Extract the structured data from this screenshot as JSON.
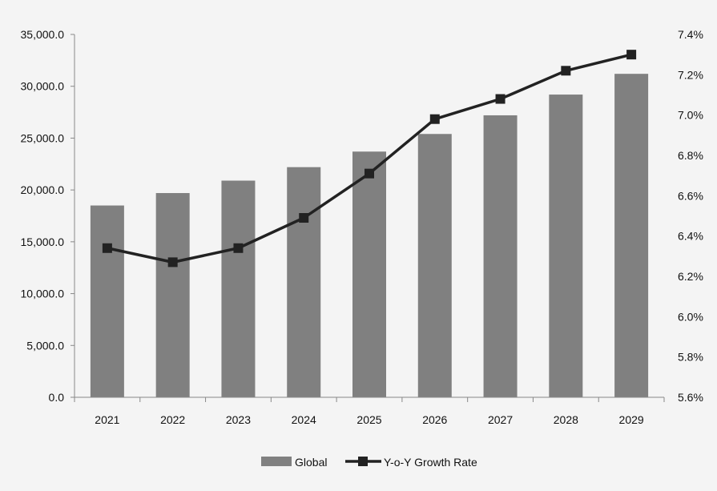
{
  "chart_data": {
    "type": "bar",
    "categories": [
      "2021",
      "2022",
      "2023",
      "2024",
      "2025",
      "2026",
      "2027",
      "2028",
      "2029"
    ],
    "series": [
      {
        "name": "Global",
        "type": "bar",
        "axis": "left",
        "color": "#808080",
        "values": [
          18500,
          19700,
          20900,
          22200,
          23700,
          25400,
          27200,
          29200,
          31200
        ]
      },
      {
        "name": "Y-o-Y Growth Rate",
        "type": "line",
        "axis": "right",
        "color": "#222222",
        "marker": "square",
        "values": [
          6.34,
          6.27,
          6.34,
          6.49,
          6.71,
          6.98,
          7.08,
          7.22,
          7.3
        ]
      }
    ],
    "y_left": {
      "min": 0,
      "max": 35000,
      "step": 5000,
      "tick_labels": [
        "0.0",
        "5,000.0",
        "10,000.0",
        "15,000.0",
        "20,000.0",
        "25,000.0",
        "30,000.0",
        "35,000.0"
      ]
    },
    "y_right": {
      "min": 5.6,
      "max": 7.4,
      "step": 0.2,
      "tick_labels": [
        "5.6%",
        "5.8%",
        "6.0%",
        "6.2%",
        "6.4%",
        "6.6%",
        "6.8%",
        "7.0%",
        "7.2%",
        "7.4%"
      ]
    },
    "grid": false,
    "legend": {
      "position": "bottom-center",
      "items": [
        {
          "label": "Global",
          "symbol": "bar"
        },
        {
          "label": "Y-o-Y Growth Rate",
          "symbol": "line-square"
        }
      ]
    }
  }
}
